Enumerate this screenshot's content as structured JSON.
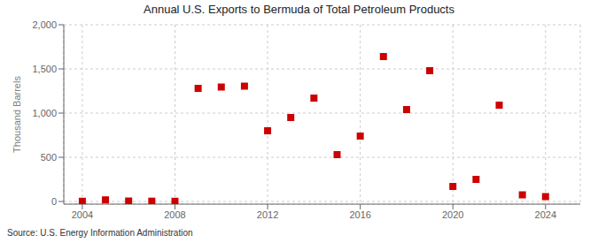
{
  "chart_data": {
    "type": "scatter",
    "title": "Annual U.S. Exports to Bermuda of Total Petroleum Products",
    "ylabel": "Thousand Barrels",
    "annotations": [
      "Source: U.S. Energy Information Administration"
    ],
    "x": [
      2004,
      2005,
      2006,
      2007,
      2008,
      2009,
      2010,
      2011,
      2012,
      2013,
      2014,
      2015,
      2016,
      2017,
      2018,
      2019,
      2020,
      2021,
      2022,
      2023,
      2024
    ],
    "values": [
      2,
      18,
      5,
      3,
      2,
      1280,
      1295,
      1305,
      800,
      950,
      1170,
      530,
      740,
      1640,
      1040,
      1480,
      170,
      250,
      1090,
      75,
      55
    ],
    "color": "#cc0000",
    "marker": "square",
    "xlim": [
      2003.2,
      2025.5
    ],
    "xticks": [
      2004,
      2008,
      2012,
      2016,
      2020,
      2024
    ],
    "ylim": [
      -30,
      2000
    ],
    "yticks": [
      0,
      500,
      {
        "value": 1000,
        "label": "1,000"
      },
      {
        "value": 1500,
        "label": "1,500"
      },
      {
        "value": 2000,
        "label": "2,000"
      }
    ],
    "grid": true
  }
}
